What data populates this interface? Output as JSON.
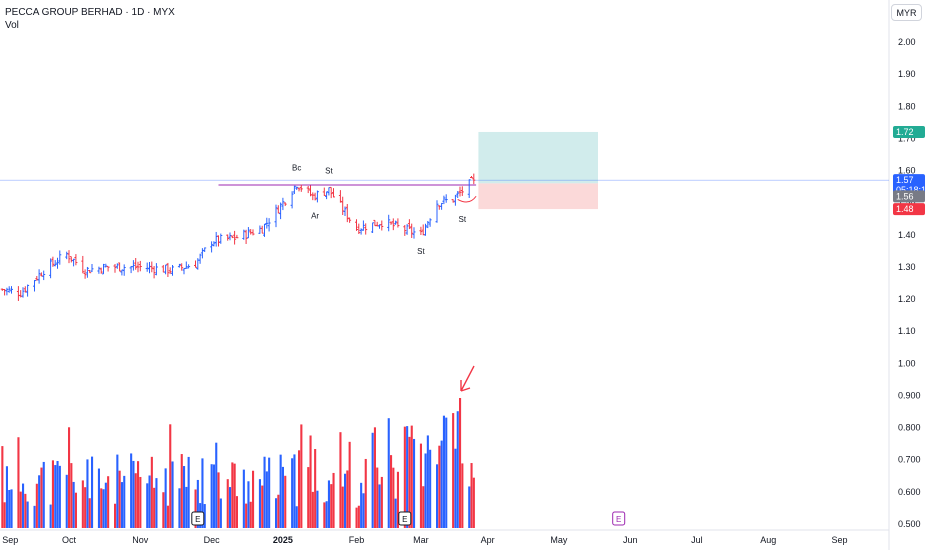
{
  "header": {
    "title": "PECCA GROUP BERHAD · 1D · MYX",
    "indicator": "Vol"
  },
  "currency_button": "MYR",
  "price_tags": {
    "last": "1.57",
    "countdown": "05:18:11",
    "mid": "1.56",
    "stop": "1.48",
    "target": "1.72",
    "last_color": "#2962ff",
    "mid_color": "#787b86",
    "stop_color": "#f23645",
    "target_color": "#22ab94"
  },
  "annotations": [
    {
      "text": "Bc",
      "date": "2025-01-08",
      "price": 1.6
    },
    {
      "text": "St",
      "date": "2025-01-22",
      "price": 1.59
    },
    {
      "text": "Ar",
      "date": "2025-01-16",
      "price": 1.45
    },
    {
      "text": "St",
      "date": "2025-03-03",
      "price": 1.34
    },
    {
      "text": "St",
      "date": "2025-03-21",
      "price": 1.44
    }
  ],
  "earnings_markers": [
    "E",
    "E",
    "E"
  ],
  "colors": {
    "up": "#2962ff",
    "down": "#f23645",
    "resistance": "#9c27b0",
    "price_line": "#2962ff",
    "arrow": "#f23645",
    "profit_zone": "#d1ecec",
    "loss_zone": "#fbd9d9"
  },
  "chart_data": {
    "type": "ohlc",
    "title": "PECCA GROUP BERHAD · 1D · MYX",
    "ylabel": "",
    "xlabel": "",
    "ylim": [
      0.5,
      2.05
    ],
    "y_ticks": [
      "2.00",
      "1.90",
      "1.80",
      "1.70",
      "1.60",
      "1.50",
      "1.40",
      "1.30",
      "1.20",
      "1.10",
      "1.00",
      "0.900",
      "0.800",
      "0.700",
      "0.600",
      "0.500"
    ],
    "x_ticks": [
      "Sep",
      "Oct",
      "Nov",
      "Dec",
      "2025",
      "Feb",
      "Mar",
      "Apr",
      "May",
      "Jun",
      "Jul",
      "Aug",
      "Sep"
    ],
    "price_series": {
      "start_date": "2024-09-02",
      "end_date": "2025-03-26",
      "start_price": 1.23,
      "anchor_closes": [
        [
          "2024-09-02",
          1.23
        ],
        [
          "2024-09-10",
          1.22
        ],
        [
          "2024-09-20",
          1.29
        ],
        [
          "2024-09-30",
          1.34
        ],
        [
          "2024-10-08",
          1.29
        ],
        [
          "2024-10-18",
          1.3
        ],
        [
          "2024-11-01",
          1.3
        ],
        [
          "2024-11-15",
          1.29
        ],
        [
          "2024-11-25",
          1.31
        ],
        [
          "2024-12-02",
          1.38
        ],
        [
          "2024-12-12",
          1.39
        ],
        [
          "2024-12-24",
          1.42
        ],
        [
          "2025-01-02",
          1.5
        ],
        [
          "2025-01-08",
          1.56
        ],
        [
          "2025-01-15",
          1.52
        ],
        [
          "2025-01-22",
          1.54
        ],
        [
          "2025-02-03",
          1.42
        ],
        [
          "2025-02-14",
          1.44
        ],
        [
          "2025-03-03",
          1.4
        ],
        [
          "2025-03-10",
          1.5
        ],
        [
          "2025-03-17",
          1.51
        ],
        [
          "2025-03-26",
          1.57
        ]
      ],
      "last_close": 1.57
    },
    "volume_series": {
      "unit": "relative",
      "spike_date": "2025-03-20",
      "note_values": "relative bar heights; tallest bar marked by red arrow"
    },
    "resistance_line": {
      "price": 1.555,
      "from": "2024-12-05",
      "to": "2025-03-27"
    },
    "last_price_line": 1.57,
    "position": {
      "entry": 1.56,
      "stop": 1.48,
      "target": 1.72,
      "from": "2025-03-28",
      "to": "2025-05-19"
    }
  }
}
